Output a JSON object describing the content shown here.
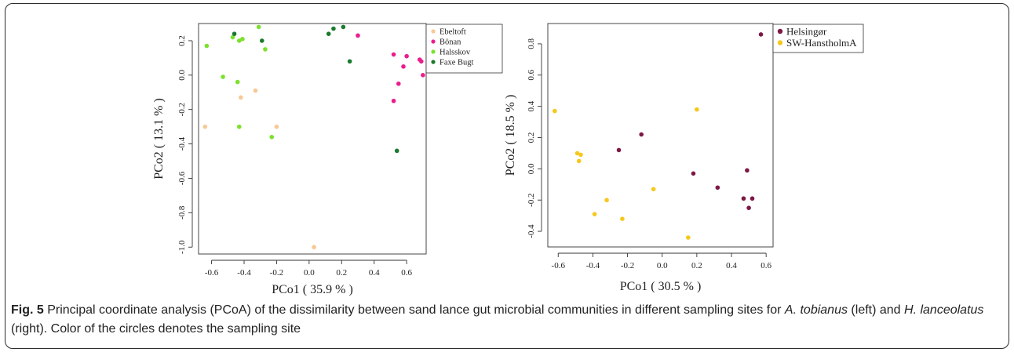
{
  "chart_data": [
    {
      "type": "scatter",
      "xlabel": "PCo1 ( 35.9 % )",
      "ylabel": "PCo2 ( 13.1 % )",
      "xlim": [
        -0.68,
        0.72
      ],
      "ylim": [
        -1.04,
        0.3
      ],
      "xticks": [
        -0.6,
        -0.4,
        -0.2,
        0.0,
        0.2,
        0.4,
        0.6
      ],
      "xtick_labels": [
        "-0.6",
        "-0.4",
        "-0.2",
        "0.0",
        "0.2",
        "0.4",
        "0.6"
      ],
      "yticks": [
        -1.0,
        -0.8,
        -0.6,
        -0.4,
        -0.2,
        0.0,
        0.2
      ],
      "ytick_labels": [
        "-1.0",
        "-0.8",
        "-0.6",
        "-0.4",
        "-0.2",
        "0.0",
        "0.2"
      ],
      "legend_position": "top-right",
      "series": [
        {
          "name": "Ebeltoft",
          "color": "#f8c896",
          "points": [
            [
              -0.64,
              -0.3
            ],
            [
              -0.42,
              -0.13
            ],
            [
              -0.33,
              -0.09
            ],
            [
              -0.2,
              -0.3
            ],
            [
              0.03,
              -1.0
            ]
          ]
        },
        {
          "name": "Bönan",
          "color": "#ea1e8c",
          "points": [
            [
              0.3,
              0.23
            ],
            [
              0.52,
              0.12
            ],
            [
              0.6,
              0.11
            ],
            [
              0.68,
              0.09
            ],
            [
              0.69,
              0.08
            ],
            [
              0.58,
              0.05
            ],
            [
              0.7,
              0.0
            ],
            [
              0.55,
              -0.05
            ],
            [
              0.52,
              -0.15
            ]
          ]
        },
        {
          "name": "Halsskov",
          "color": "#7ce12e",
          "points": [
            [
              -0.63,
              0.17
            ],
            [
              -0.47,
              0.22
            ],
            [
              -0.43,
              0.2
            ],
            [
              -0.41,
              0.21
            ],
            [
              -0.31,
              0.28
            ],
            [
              -0.27,
              0.15
            ],
            [
              -0.53,
              -0.01
            ],
            [
              -0.44,
              -0.04
            ],
            [
              -0.43,
              -0.3
            ],
            [
              -0.23,
              -0.36
            ]
          ]
        },
        {
          "name": "Faxe Bugt",
          "color": "#1a7a2e",
          "points": [
            [
              -0.46,
              0.24
            ],
            [
              -0.29,
              0.2
            ],
            [
              0.12,
              0.24
            ],
            [
              0.15,
              0.27
            ],
            [
              0.21,
              0.28
            ],
            [
              0.25,
              0.08
            ],
            [
              0.54,
              -0.44
            ]
          ]
        }
      ]
    },
    {
      "type": "scatter",
      "xlabel": "PCo1 ( 30.5 % )",
      "ylabel": "PCo2 ( 18.5 % )",
      "xlim": [
        -0.66,
        0.64
      ],
      "ylim": [
        -0.5,
        0.93
      ],
      "xticks": [
        -0.6,
        -0.4,
        -0.2,
        0.0,
        0.2,
        0.4,
        0.6
      ],
      "xtick_labels": [
        "-0.6",
        "-0.4",
        "-0.2",
        "0.0",
        "0.2",
        "0.4",
        "0.6"
      ],
      "yticks": [
        -0.4,
        -0.2,
        0.0,
        0.2,
        0.4,
        0.6,
        0.8
      ],
      "ytick_labels": [
        "-0.4",
        "-0.2",
        "0.0",
        "0.2",
        "0.4",
        "0.6",
        "0.8"
      ],
      "legend_position": "top-right",
      "series": [
        {
          "name": "Helsingør",
          "color": "#7c1845",
          "points": [
            [
              0.57,
              0.86
            ],
            [
              -0.25,
              0.12
            ],
            [
              -0.12,
              0.22
            ],
            [
              0.18,
              -0.03
            ],
            [
              0.49,
              -0.01
            ],
            [
              0.32,
              -0.12
            ],
            [
              0.47,
              -0.19
            ],
            [
              0.52,
              -0.19
            ],
            [
              0.5,
              -0.25
            ]
          ]
        },
        {
          "name": "SW-HanstholmA",
          "color": "#f6c81c",
          "points": [
            [
              -0.62,
              0.37
            ],
            [
              0.2,
              0.38
            ],
            [
              -0.49,
              0.1
            ],
            [
              -0.47,
              0.09
            ],
            [
              -0.48,
              0.05
            ],
            [
              -0.05,
              -0.13
            ],
            [
              -0.32,
              -0.2
            ],
            [
              -0.39,
              -0.29
            ],
            [
              -0.23,
              -0.32
            ],
            [
              0.15,
              -0.44
            ]
          ]
        }
      ]
    }
  ],
  "caption": {
    "label": "Fig. 5",
    "text_before_species1": " Principal coordinate analysis (PCoA) of the dissimilarity between sand lance gut microbial communities in different sampling sites for ",
    "species1": "A. tobianus",
    "text_between": " (left) and ",
    "species2": "H. lanceolatus",
    "text_after": " (right). Color of the circles denotes the sampling site"
  }
}
